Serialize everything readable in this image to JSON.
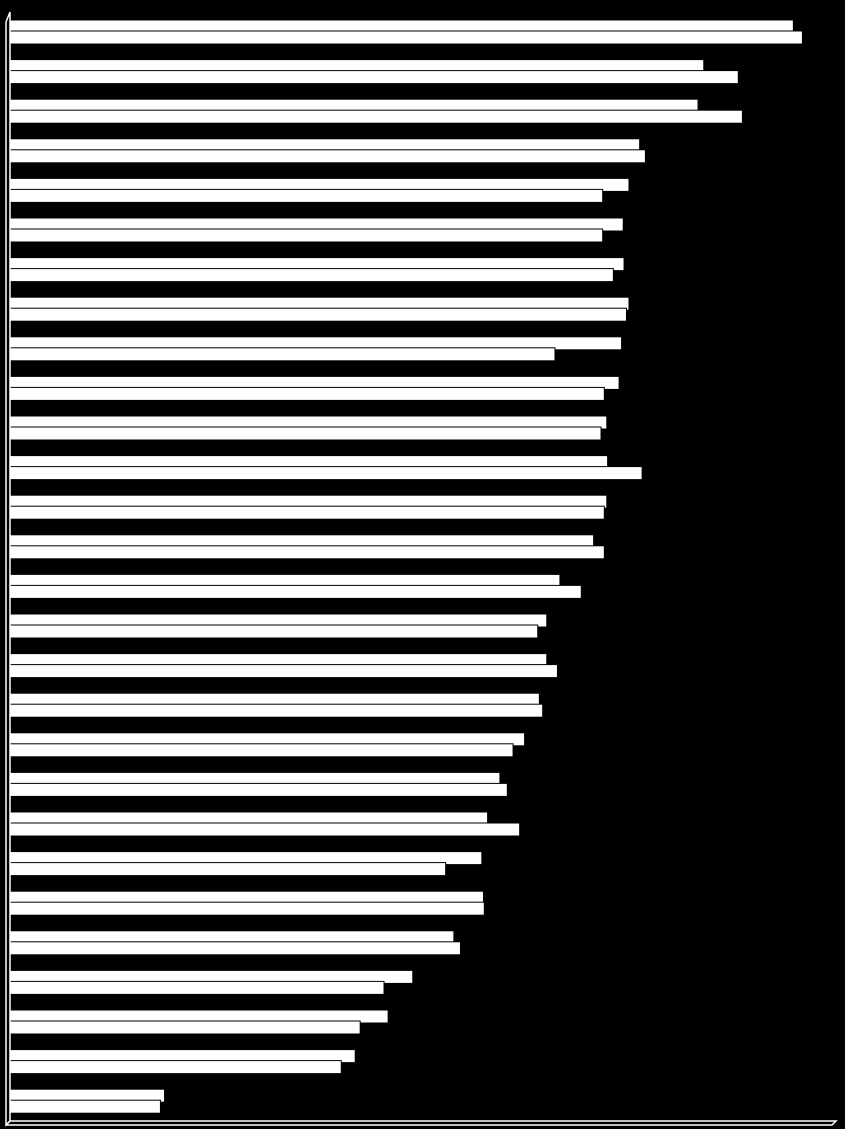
{
  "chart_data": {
    "type": "bar",
    "orientation": "horizontal",
    "title": "",
    "xlabel": "",
    "ylabel": "",
    "grid": false,
    "legend": "none",
    "xlim": [
      0,
      100
    ],
    "categories": [
      "",
      "",
      "",
      "",
      "",
      "",
      "",
      "",
      "",
      "",
      "",
      "",
      "",
      "",
      "",
      "",
      "",
      "",
      "",
      "",
      "",
      "",
      "",
      "",
      "",
      "",
      "",
      ""
    ],
    "series": [
      {
        "values": [
          95.3,
          84.4,
          83.7,
          76.6,
          75.3,
          74.6,
          74.7,
          75.3,
          74.4,
          74.1,
          72.6,
          72.7,
          72.6,
          71.0,
          66.9,
          65.3,
          65.3,
          64.4,
          62.6,
          59.6,
          58.1,
          57.4,
          57.6,
          54.0,
          49.0,
          46.0,
          42.0,
          18.8
        ]
      },
      {
        "values": [
          96.4,
          88.6,
          89.1,
          77.3,
          72.1,
          72.1,
          73.4,
          75.0,
          66.3,
          72.3,
          71.9,
          76.9,
          72.3,
          72.3,
          69.5,
          64.2,
          66.6,
          64.8,
          61.2,
          60.5,
          62.0,
          53.0,
          57.7,
          54.8,
          45.5,
          42.6,
          40.3,
          18.3
        ]
      }
    ]
  },
  "style": {
    "background": "#000000",
    "bar_fill": "#ffffff",
    "bar_stroke": "#000000",
    "axis_color": "#ffffff"
  }
}
